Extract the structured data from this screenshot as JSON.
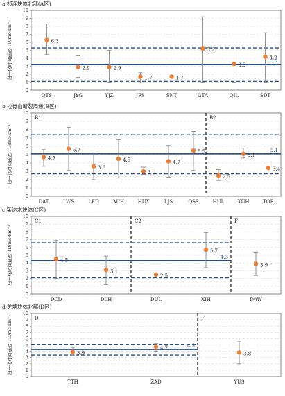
{
  "chart_data": [
    {
      "type": "dot",
      "title": "a 祁连块体北部(A区)",
      "y_label": "归一化时间延迟 TD/ms·km⁻¹",
      "categories": [
        "QTS",
        "JYG",
        "YJZ",
        "JFS",
        "SNT",
        "GTA",
        "QIL",
        "SDT"
      ],
      "values": [
        6.3,
        2.9,
        2.9,
        1.7,
        1.7,
        5.2,
        3.3,
        4.2
      ],
      "low": [
        4.5,
        1.6,
        1.0,
        0.9,
        null,
        1.0,
        1.0,
        1.0
      ],
      "high": [
        8.3,
        4.3,
        5.0,
        2.2,
        null,
        9.2,
        5.2,
        7.2
      ],
      "color": "#ed7d31",
      "ylim": [
        0,
        10
      ],
      "yticks": [
        0,
        1,
        2,
        3,
        4,
        5,
        6,
        7,
        8,
        9,
        10
      ],
      "grid": true,
      "regions": [],
      "hlines": [
        {
          "value": 3.2,
          "style": "solid",
          "span": [
            0,
            8
          ],
          "labeled": true
        },
        {
          "value": 5.3,
          "style": "dashed",
          "span": [
            0,
            8
          ]
        },
        {
          "value": 1.1,
          "style": "dashed",
          "span": [
            0,
            8
          ]
        }
      ]
    },
    {
      "type": "dot",
      "title": "b 拉脊山断裂周缘(B区)",
      "y_label": "归一化时间延迟 TD/ms·km⁻¹",
      "categories": [
        "DAT",
        "LWS",
        "LED",
        "MIH",
        "HUY",
        "LJS",
        "QSS",
        "HUL",
        "XUH",
        "TOR"
      ],
      "values": [
        4.7,
        5.7,
        3.6,
        4.5,
        3,
        4.2,
        5.5,
        2.5,
        5.1,
        3.4
      ],
      "low": [
        3.6,
        3.1,
        2.0,
        2.2,
        2.6,
        2.3,
        3.1,
        1.9,
        4.6,
        null
      ],
      "high": [
        5.6,
        8.3,
        5.2,
        6.8,
        3.5,
        6.1,
        7.8,
        3.2,
        5.8,
        null
      ],
      "color": "#ed7d31",
      "ylim": [
        0,
        10
      ],
      "yticks": [
        0,
        1,
        2,
        3,
        4,
        5,
        6,
        7,
        8,
        9,
        10
      ],
      "grid": true,
      "regions": [
        {
          "label": "B1",
          "start": 0
        },
        {
          "label": "B2",
          "start": 7
        }
      ],
      "hlines": [
        {
          "value": 5.1,
          "style": "solid",
          "span": [
            0,
            10
          ],
          "labeled": true
        },
        {
          "value": 7.4,
          "style": "dashed",
          "span": [
            0,
            10
          ]
        },
        {
          "value": 2.7,
          "style": "dashed",
          "span": [
            0,
            10
          ]
        }
      ]
    },
    {
      "type": "dot",
      "title": "c 柴达木块体(C区)",
      "y_label": "归一化时间延迟 TD/ms·km⁻¹",
      "categories": [
        "DCD",
        "DLH",
        "DUL",
        "XIH",
        "DAW"
      ],
      "values": [
        4.5,
        3.1,
        2.5,
        5.7,
        3.9
      ],
      "low": [
        2.0,
        1.2,
        null,
        3.4,
        2.4
      ],
      "high": [
        6.9,
        4.9,
        null,
        7.9,
        5.3
      ],
      "color": "#ed7d31",
      "ylim": [
        0,
        10
      ],
      "yticks": [
        0,
        1,
        2,
        3,
        4,
        5,
        6,
        7,
        8,
        9,
        10
      ],
      "grid": true,
      "regions": [
        {
          "label": "C1",
          "start": 0
        },
        {
          "label": "C2",
          "start": 2
        },
        {
          "label": "F",
          "start": 4
        }
      ],
      "hlines": [
        {
          "value": 4.3,
          "style": "solid",
          "span": [
            0,
            4
          ],
          "labeled": true
        },
        {
          "value": 6.6,
          "style": "dashed",
          "span": [
            0,
            4
          ]
        },
        {
          "value": 2.1,
          "style": "dashed",
          "span": [
            0,
            4
          ]
        }
      ]
    },
    {
      "type": "dot",
      "title": "d 羌塘块体北部(D区)",
      "y_label": "归一化时间延迟 TD/ms·km⁻¹",
      "categories": [
        "TTH",
        "ZAD",
        "YUS"
      ],
      "values": [
        3.9,
        4.7,
        3.8
      ],
      "low": [
        3.4,
        4.0,
        2.0
      ],
      "high": [
        4.6,
        5.2,
        5.6
      ],
      "color": "#ed7d31",
      "ylim": [
        0,
        10
      ],
      "yticks": [
        0,
        1,
        2,
        3,
        4,
        5,
        6,
        7,
        8,
        9,
        10
      ],
      "grid": true,
      "regions": [
        {
          "label": "D",
          "start": 0
        },
        {
          "label": "F",
          "start": 2
        }
      ],
      "hlines": [
        {
          "value": 4.3,
          "style": "solid",
          "span": [
            0,
            2
          ],
          "labeled": true
        },
        {
          "value": 5.1,
          "style": "dashed",
          "span": [
            0,
            2
          ]
        },
        {
          "value": 3.4,
          "style": "dashed",
          "span": [
            0,
            2
          ]
        }
      ]
    }
  ]
}
